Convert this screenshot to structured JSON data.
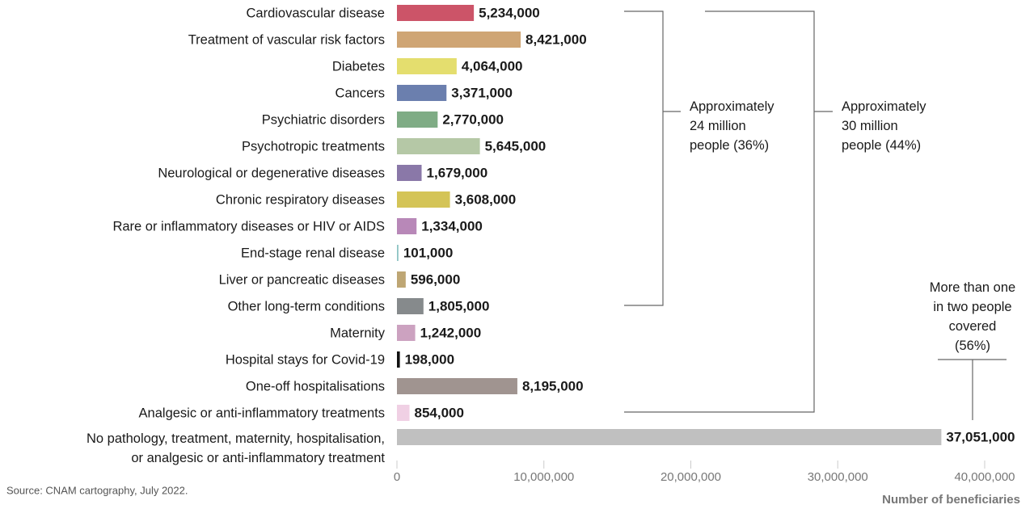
{
  "chart_data": {
    "type": "bar",
    "orientation": "horizontal",
    "categories": [
      "Cardiovascular disease",
      "Treatment of vascular risk factors",
      "Diabetes",
      "Cancers",
      "Psychiatric disorders",
      "Psychotropic treatments",
      "Neurological or degenerative diseases",
      "Chronic respiratory diseases",
      "Rare or inflammatory diseases or HIV or AIDS",
      "End-stage renal disease",
      "Liver or pancreatic diseases",
      "Other long-term conditions",
      "Maternity",
      "Hospital stays for Covid-19",
      "One-off hospitalisations",
      "Analgesic or anti-inflammatory treatments",
      "No pathology, treatment, maternity, hospitalisation,\nor analgesic or anti-inflammatory treatment"
    ],
    "values": [
      5234000,
      8421000,
      4064000,
      3371000,
      2770000,
      5645000,
      1679000,
      3608000,
      1334000,
      101000,
      596000,
      1805000,
      1242000,
      198000,
      8195000,
      854000,
      37051000
    ],
    "value_labels": [
      "5,234,000",
      "8,421,000",
      "4,064,000",
      "3,371,000",
      "2,770,000",
      "5,645,000",
      "1,679,000",
      "3,608,000",
      "1,334,000",
      "101,000",
      "596,000",
      "1,805,000",
      "1,242,000",
      "198,000",
      "8,195,000",
      "854,000",
      "37,051,000"
    ],
    "colors": [
      "#cc5468",
      "#cfa574",
      "#e4de6e",
      "#6b7fae",
      "#7fac85",
      "#b5c8a6",
      "#8a78a8",
      "#d4c457",
      "#b888b8",
      "#8fc4c4",
      "#bea674",
      "#868a8c",
      "#cca2c0",
      "#111111",
      "#a09490",
      "#f0d0e4",
      "#c0c0c0"
    ],
    "xlim": [
      0,
      40000000
    ],
    "xticks": [
      0,
      {
        "value": 10000000,
        "label": "10,000,000"
      },
      {
        "value": 20000000,
        "label": "20,000,000"
      },
      {
        "value": 30000000,
        "label": "30,000,000"
      },
      {
        "value": 40000000,
        "label": "40,000,000"
      }
    ],
    "xlabel": "Number of beneficiaries",
    "annotations": [
      "Approximately\n24 million\npeople (36%)",
      "Approximately\n30 million\npeople (44%)",
      "More than one\nin two people\ncovered\n(56%)"
    ],
    "source": "Source: CNAM cartography, July 2022."
  }
}
